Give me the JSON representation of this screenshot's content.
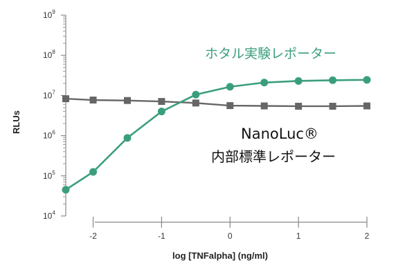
{
  "chart_data": {
    "type": "line",
    "xlabel": "log [TNFalpha] (ng/ml)",
    "ylabel": "RLUs",
    "y_scale": "log",
    "xlim": [
      -2.4,
      2.0
    ],
    "ylim": [
      10000,
      1000000000
    ],
    "x_ticks": [
      -2,
      -1,
      0,
      1,
      2
    ],
    "x_tick_labels": [
      "-2",
      "-1",
      "0",
      "1",
      "2"
    ],
    "y_ticks": [
      {
        "base": "10",
        "exp": "4",
        "value": 10000
      },
      {
        "base": "10",
        "exp": "5",
        "value": 100000
      },
      {
        "base": "10",
        "exp": "6",
        "value": 1000000
      },
      {
        "base": "10",
        "exp": "7",
        "value": 10000000
      },
      {
        "base": "10",
        "exp": "8",
        "value": 100000000
      },
      {
        "base": "10",
        "exp": "9",
        "value": 1000000000
      }
    ],
    "grid": false,
    "series": [
      {
        "label_lines": [
          "ホタル実験レポーター"
        ],
        "color": "#3a9e7c",
        "marker": "circle",
        "x": [
          -2.4,
          -2.0,
          -1.5,
          -1.0,
          -0.5,
          0.0,
          0.5,
          1.0,
          1.5,
          2.0
        ],
        "y": [
          45000,
          125000,
          880000,
          4000000,
          10500000,
          16500000,
          21000000,
          23000000,
          24000000,
          24500000
        ]
      },
      {
        "label_lines": [
          "NanoLuc®",
          "内部標準レポーター"
        ],
        "color": "#666666",
        "marker": "square",
        "x": [
          -2.4,
          -2.0,
          -1.5,
          -1.0,
          -0.5,
          0.0,
          0.5,
          1.0,
          1.5,
          2.0
        ],
        "y": [
          8300000,
          7700000,
          7500000,
          7100000,
          6500000,
          5600000,
          5500000,
          5400000,
          5400000,
          5500000
        ]
      }
    ]
  }
}
